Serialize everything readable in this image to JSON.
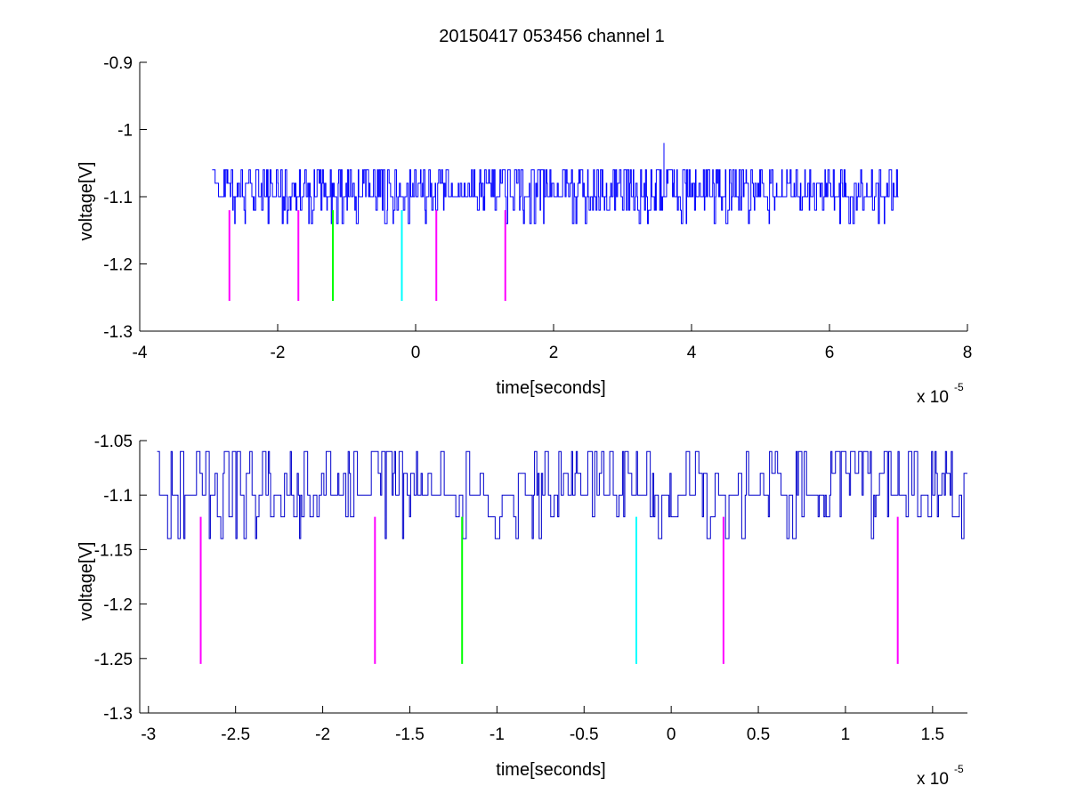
{
  "figure": {
    "title": "20150417 053456 channel 1"
  },
  "chart_data": [
    {
      "type": "line",
      "title": "20150417 053456 channel 1",
      "xlabel": "time[seconds]",
      "ylabel": "voltage[V]",
      "x_multiplier_label": "x 10",
      "x_multiplier_exponent": "-5",
      "xlim": [
        -4,
        8
      ],
      "ylim": [
        -1.3,
        -0.9
      ],
      "xticks": [
        -4,
        -2,
        0,
        2,
        4,
        6,
        8
      ],
      "xtick_labels": [
        "-4",
        "-2",
        "0",
        "2",
        "4",
        "6",
        "8"
      ],
      "yticks": [
        -1.3,
        -1.2,
        -1.1,
        -1.0,
        -0.9
      ],
      "ytick_labels": [
        "-1.3",
        "-1.2",
        "-1.1",
        "-1",
        "-0.9"
      ],
      "grid": false,
      "series": [
        {
          "color": "#0000ff",
          "x_range": [
            -2.95,
            7.0
          ],
          "levels": [
            -1.06,
            -1.08,
            -1.1,
            -1.12,
            -1.14
          ],
          "spike": {
            "x": 3.6,
            "y": -1.02
          }
        }
      ],
      "markers": [
        {
          "x": -2.7,
          "y_top": -1.12,
          "y_bottom": -1.255,
          "color": "#ff00ff"
        },
        {
          "x": -1.7,
          "y_top": -1.12,
          "y_bottom": -1.255,
          "color": "#ff00ff"
        },
        {
          "x": -1.2,
          "y_top": -1.12,
          "y_bottom": -1.255,
          "color": "#00ff00"
        },
        {
          "x": -0.2,
          "y_top": -1.12,
          "y_bottom": -1.255,
          "color": "#00ffff"
        },
        {
          "x": 0.3,
          "y_top": -1.12,
          "y_bottom": -1.255,
          "color": "#ff00ff"
        },
        {
          "x": 1.3,
          "y_top": -1.12,
          "y_bottom": -1.255,
          "color": "#ff00ff"
        }
      ]
    },
    {
      "type": "line",
      "title": "",
      "xlabel": "time[seconds]",
      "ylabel": "voltage[V]",
      "x_multiplier_label": "x 10",
      "x_multiplier_exponent": "-5",
      "xlim": [
        -3.05,
        1.7
      ],
      "ylim": [
        -1.3,
        -1.05
      ],
      "xticks": [
        -3,
        -2.5,
        -2,
        -1.5,
        -1,
        -0.5,
        0,
        0.5,
        1,
        1.5
      ],
      "xtick_labels": [
        "-3",
        "-2.5",
        "-2",
        "-1.5",
        "-1",
        "-0.5",
        "0",
        "0.5",
        "1",
        "1.5"
      ],
      "yticks": [
        -1.3,
        -1.25,
        -1.2,
        -1.15,
        -1.1,
        -1.05
      ],
      "ytick_labels": [
        "-1.3",
        "-1.25",
        "-1.2",
        "-1.15",
        "-1.1",
        "-1.05"
      ],
      "grid": false,
      "series": [
        {
          "color": "#0000cc",
          "x_range": [
            -2.95,
            1.7
          ],
          "levels": [
            -1.06,
            -1.08,
            -1.1,
            -1.12,
            -1.14
          ]
        }
      ],
      "markers": [
        {
          "x": -2.7,
          "y_top": -1.12,
          "y_bottom": -1.255,
          "color": "#ff00ff"
        },
        {
          "x": -1.7,
          "y_top": -1.12,
          "y_bottom": -1.255,
          "color": "#ff00ff"
        },
        {
          "x": -1.2,
          "y_top": -1.12,
          "y_bottom": -1.255,
          "color": "#00ff00"
        },
        {
          "x": -0.2,
          "y_top": -1.12,
          "y_bottom": -1.255,
          "color": "#00ffff"
        },
        {
          "x": 0.3,
          "y_top": -1.12,
          "y_bottom": -1.255,
          "color": "#ff00ff"
        },
        {
          "x": 1.3,
          "y_top": -1.12,
          "y_bottom": -1.255,
          "color": "#ff00ff"
        }
      ]
    }
  ]
}
